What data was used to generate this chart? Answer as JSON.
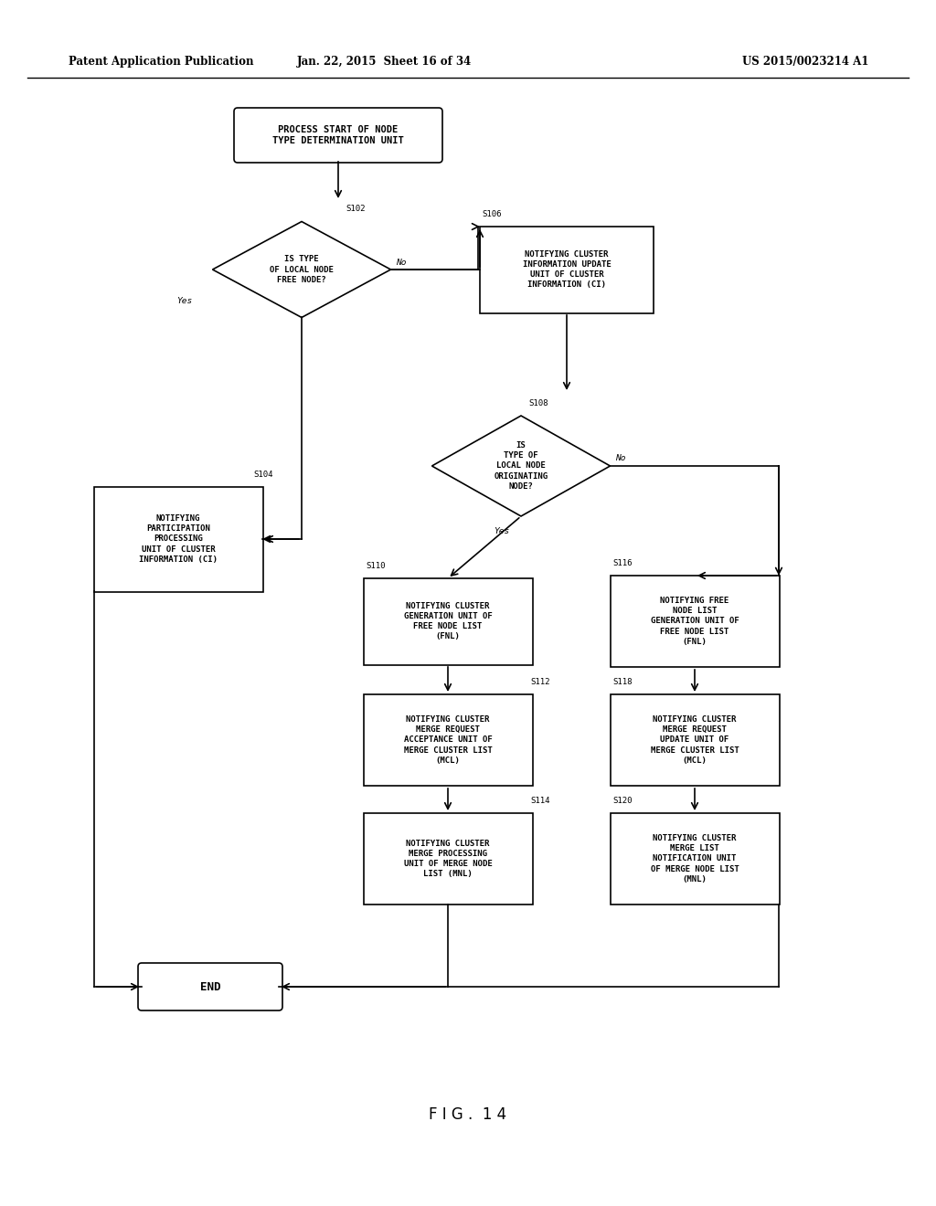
{
  "header_left": "Patent Application Publication",
  "header_mid": "Jan. 22, 2015  Sheet 16 of 34",
  "header_right": "US 2015/0023214 A1",
  "figure_label": "F I G .  1 4",
  "bg_color": "#ffffff",
  "line_color": "#000000",
  "text_color": "#000000",
  "font_size_box": 6.5,
  "font_size_label": 6.8,
  "font_size_step": 6.5,
  "font_size_header": 8.5,
  "font_size_fig": 12
}
